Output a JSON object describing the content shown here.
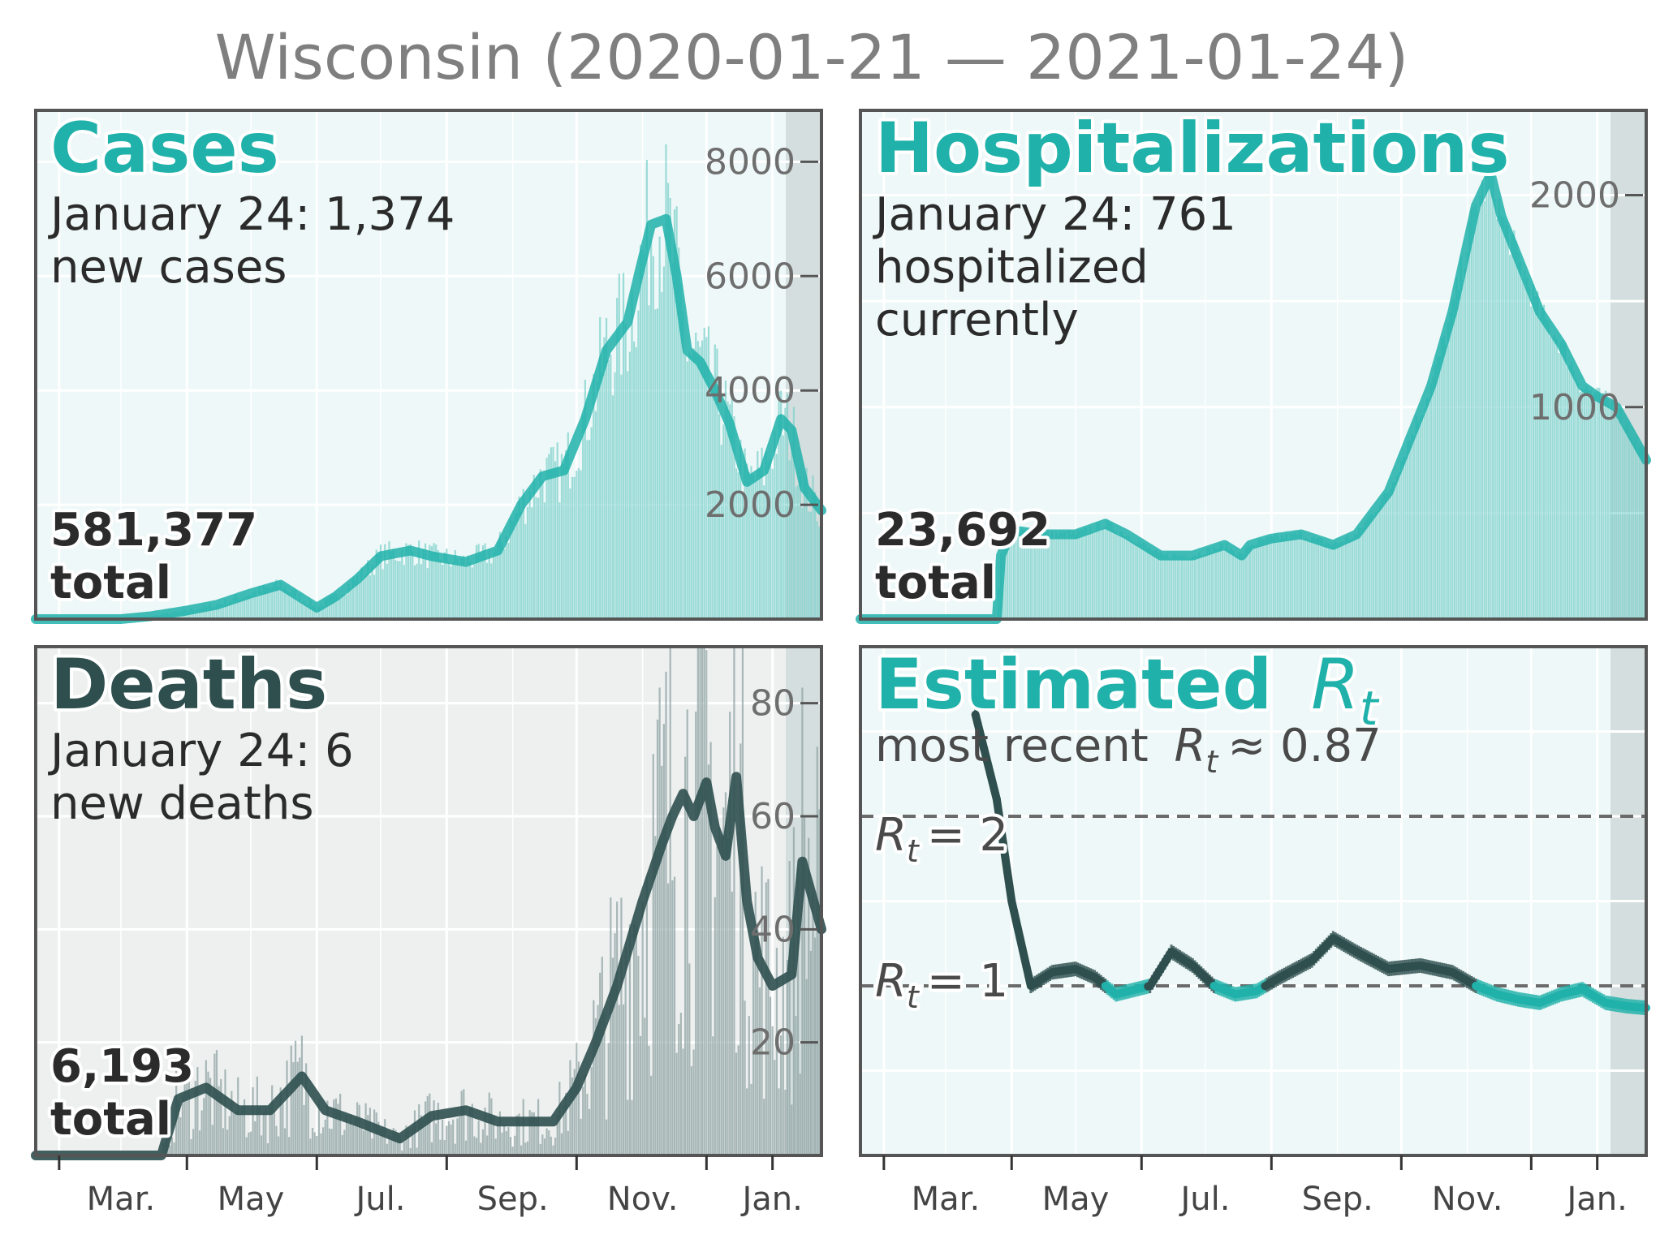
{
  "title": "Wisconsin (2020-01-21 — 2021-01-24)",
  "colors": {
    "teal": "#20b2aa",
    "teal_bar": "#7fd1cc",
    "dark": "#2f4f4f",
    "dark_bar": "#8fa3a3",
    "panel_bg_teal": "#eef8f8",
    "panel_bg_grey": "#eef0f0",
    "recent_shade": "#d5dede",
    "frame": "#555555"
  },
  "x_tick_labels": [
    "Mar.",
    "May",
    "Jul.",
    "Sep.",
    "Nov.",
    "Jan."
  ],
  "panels": {
    "cases": {
      "title": "Cases",
      "subtitle_line1": "January 24: 1,374",
      "subtitle_line2": "new cases",
      "total_value": "581,377",
      "total_label": "total",
      "y_ticks": [
        "2000",
        "4000",
        "6000",
        "8000"
      ]
    },
    "hospitalizations": {
      "title": "Hospitalizations",
      "subtitle_line1": "January 24: 761",
      "subtitle_line2": "hospitalized",
      "subtitle_line3": "currently",
      "total_value": "23,692",
      "total_label": "total",
      "y_ticks": [
        "1000",
        "2000"
      ]
    },
    "deaths": {
      "title": "Deaths",
      "subtitle_line1": "January 24: 6",
      "subtitle_line2": "new deaths",
      "total_value": "6,193",
      "total_label": "total",
      "y_ticks": [
        "20",
        "40",
        "60",
        "80"
      ]
    },
    "rt": {
      "title_word": "Estimated",
      "title_symbol": "R",
      "title_subscript": "t",
      "subtitle_prefix": "most recent",
      "subtitle_symbol": "R",
      "subtitle_subscript": "t",
      "subtitle_suffix": "≈ 0.87",
      "ref_line_2_symbol": "R",
      "ref_line_2_subscript": "t",
      "ref_line_2_value": "= 2",
      "ref_line_1_symbol": "R",
      "ref_line_1_subscript": "t",
      "ref_line_1_value": "= 1"
    }
  },
  "chart_data": [
    {
      "type": "bar",
      "panel": "cases",
      "title": "Cases",
      "x_range": [
        "2020-01-21",
        "2021-01-24"
      ],
      "ylim": [
        0,
        8900
      ],
      "series": [
        {
          "kind": "smoothed-line",
          "x": [
            "2020-01-21",
            "2020-03-01",
            "2020-03-15",
            "2020-04-01",
            "2020-04-15",
            "2020-05-01",
            "2020-05-15",
            "2020-06-01",
            "2020-06-10",
            "2020-06-20",
            "2020-07-01",
            "2020-07-15",
            "2020-07-25",
            "2020-08-10",
            "2020-08-25",
            "2020-09-05",
            "2020-09-15",
            "2020-09-25",
            "2020-10-05",
            "2020-10-15",
            "2020-10-25",
            "2020-10-30",
            "2020-11-05",
            "2020-11-12",
            "2020-11-17",
            "2020-11-22",
            "2020-11-28",
            "2020-12-05",
            "2020-12-12",
            "2020-12-20",
            "2020-12-28",
            "2021-01-05",
            "2021-01-10",
            "2021-01-16",
            "2021-01-24"
          ],
          "values": [
            0,
            0,
            50,
            150,
            250,
            450,
            600,
            200,
            400,
            700,
            1100,
            1200,
            1100,
            1000,
            1200,
            2000,
            2500,
            2600,
            3500,
            4700,
            5200,
            6000,
            6900,
            7000,
            6000,
            4700,
            4500,
            4000,
            3400,
            2400,
            2600,
            3500,
            3300,
            2300,
            1900
          ]
        }
      ],
      "bars_note": "daily new cases as thin bars, peak near 8500 in mid-November"
    },
    {
      "type": "bar",
      "panel": "hospitalizations",
      "title": "Hospitalizations",
      "x_range": [
        "2020-01-21",
        "2021-01-24"
      ],
      "ylim": [
        0,
        2400
      ],
      "series": [
        {
          "kind": "smoothed-line",
          "x": [
            "2020-01-21",
            "2020-03-25",
            "2020-03-27",
            "2020-04-01",
            "2020-04-15",
            "2020-05-01",
            "2020-05-15",
            "2020-05-25",
            "2020-06-10",
            "2020-06-25",
            "2020-07-10",
            "2020-07-18",
            "2020-07-22",
            "2020-08-01",
            "2020-08-15",
            "2020-08-30",
            "2020-09-10",
            "2020-09-25",
            "2020-10-05",
            "2020-10-15",
            "2020-10-25",
            "2020-11-05",
            "2020-11-12",
            "2020-11-17",
            "2020-11-25",
            "2020-12-05",
            "2020-12-15",
            "2020-12-25",
            "2021-01-01",
            "2021-01-10",
            "2021-01-24"
          ],
          "values": [
            0,
            0,
            300,
            420,
            400,
            400,
            450,
            400,
            300,
            300,
            350,
            300,
            350,
            380,
            400,
            350,
            400,
            600,
            850,
            1100,
            1450,
            1950,
            2100,
            1900,
            1700,
            1450,
            1300,
            1100,
            1050,
            1000,
            750
          ]
        }
      ]
    },
    {
      "type": "bar",
      "panel": "deaths",
      "title": "Deaths",
      "x_range": [
        "2020-01-21",
        "2021-01-24"
      ],
      "ylim": [
        0,
        90
      ],
      "series": [
        {
          "kind": "smoothed-line",
          "x": [
            "2020-01-21",
            "2020-03-20",
            "2020-03-28",
            "2020-04-10",
            "2020-04-25",
            "2020-05-10",
            "2020-05-25",
            "2020-06-05",
            "2020-06-20",
            "2020-07-10",
            "2020-07-25",
            "2020-08-10",
            "2020-08-25",
            "2020-09-10",
            "2020-09-20",
            "2020-10-01",
            "2020-10-10",
            "2020-10-20",
            "2020-11-01",
            "2020-11-10",
            "2020-11-15",
            "2020-11-20",
            "2020-11-25",
            "2020-12-01",
            "2020-12-05",
            "2020-12-10",
            "2020-12-15",
            "2020-12-20",
            "2020-12-25",
            "2021-01-01",
            "2021-01-10",
            "2021-01-15",
            "2021-01-24"
          ],
          "values": [
            0,
            0,
            10,
            12,
            8,
            8,
            14,
            8,
            6,
            3,
            7,
            8,
            6,
            6,
            6,
            12,
            20,
            30,
            45,
            55,
            60,
            64,
            60,
            66,
            58,
            53,
            67,
            45,
            35,
            30,
            32,
            52,
            40
          ]
        }
      ]
    },
    {
      "type": "line",
      "panel": "rt",
      "title": "",
      "x_range": [
        "2020-01-21",
        "2021-01-24"
      ],
      "ylim": [
        0.0,
        3.0
      ],
      "reference_lines": [
        1,
        2
      ],
      "series": [
        {
          "kind": "rt-estimate",
          "x": [
            "2020-03-15",
            "2020-03-25",
            "2020-04-01",
            "2020-04-10",
            "2020-04-20",
            "2020-05-01",
            "2020-05-10",
            "2020-05-20",
            "2020-06-05",
            "2020-06-15",
            "2020-06-25",
            "2020-07-05",
            "2020-07-15",
            "2020-07-25",
            "2020-08-05",
            "2020-08-20",
            "2020-08-30",
            "2020-09-10",
            "2020-09-25",
            "2020-10-10",
            "2020-10-25",
            "2020-11-05",
            "2020-11-15",
            "2020-11-25",
            "2020-12-05",
            "2020-12-15",
            "2020-12-25",
            "2021-01-05",
            "2021-01-15",
            "2021-01-24"
          ],
          "values": [
            2.6,
            2.1,
            1.5,
            1.0,
            1.08,
            1.1,
            1.05,
            0.95,
            1.0,
            1.2,
            1.12,
            1.0,
            0.95,
            0.97,
            1.05,
            1.15,
            1.28,
            1.2,
            1.1,
            1.12,
            1.08,
            1.0,
            0.95,
            0.92,
            0.9,
            0.95,
            0.98,
            0.9,
            0.88,
            0.87
          ]
        }
      ]
    }
  ]
}
